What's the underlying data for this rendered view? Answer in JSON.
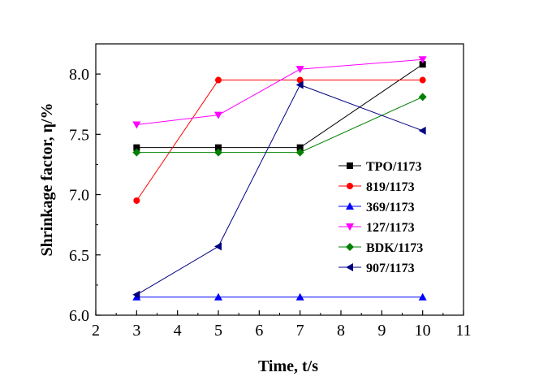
{
  "chart_data": {
    "type": "line",
    "xlabel": "Time, t/s",
    "ylabel": "Shrinkage factor, η/%",
    "xlim": [
      2,
      11
    ],
    "ylim": [
      6.0,
      8.25
    ],
    "xticks": [
      "2",
      "3",
      "4",
      "5",
      "6",
      "7",
      "8",
      "9",
      "10",
      "11"
    ],
    "yticks": [
      "6.0",
      "6.5",
      "7.0",
      "7.5",
      "8.0"
    ],
    "grid": false,
    "legend": "right",
    "x": [
      3,
      5,
      7,
      10
    ],
    "series": [
      {
        "name": "TPO/1173",
        "values": [
          7.39,
          7.39,
          7.39,
          8.08
        ],
        "color": "#000000",
        "marker": "square"
      },
      {
        "name": "819/1173",
        "values": [
          6.95,
          7.95,
          7.95,
          7.95
        ],
        "color": "#ff0000",
        "marker": "circle"
      },
      {
        "name": "369/1173",
        "values": [
          6.15,
          6.15,
          6.15,
          6.15
        ],
        "color": "#0000ff",
        "marker": "triangle-up"
      },
      {
        "name": "127/1173",
        "values": [
          7.58,
          7.66,
          8.04,
          8.12
        ],
        "color": "#ff00ff",
        "marker": "triangle-down"
      },
      {
        "name": "BDK/1173",
        "values": [
          7.35,
          7.35,
          7.35,
          7.81
        ],
        "color": "#008000",
        "marker": "diamond"
      },
      {
        "name": "907/1173",
        "values": [
          6.17,
          6.57,
          7.91,
          7.53
        ],
        "color": "#000080",
        "marker": "triangle-left"
      }
    ]
  }
}
